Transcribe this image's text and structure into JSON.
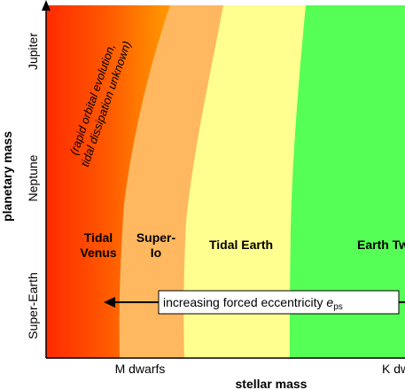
{
  "axes": {
    "xlabel": "stellar mass",
    "ylabel": "planetary mass",
    "xticks": [
      "M dwarfs",
      "K dwarfs"
    ],
    "yticks": [
      "Jupiter",
      "Neptune",
      "Super-Earth"
    ]
  },
  "regions": [
    {
      "name": "Tidal Venus",
      "label_line1": "Tidal",
      "label_line2": "Venus",
      "color": "#ff3300"
    },
    {
      "name": "Super-Io",
      "label_line1": "Super-",
      "label_line2": "Io",
      "color": "#ffb860"
    },
    {
      "name": "Tidal Earth",
      "label": "Tidal Earth",
      "color": "#ffff90"
    },
    {
      "name": "Earth Twin",
      "label": "Earth Twin",
      "color": "#55ff55"
    }
  ],
  "annotation": {
    "line1": "(rapid orbital evolution,",
    "line2": "tidal dissipation unknown)"
  },
  "arrow_label": {
    "text": "increasing forced eccentricity ",
    "symbol": "e",
    "subscript": "ps"
  },
  "colors": {
    "red_edge": "#ff2a00",
    "orange": "#ff9a00",
    "light_orange": "#ffb860",
    "yellow": "#ffff90",
    "green": "#55ff55"
  }
}
